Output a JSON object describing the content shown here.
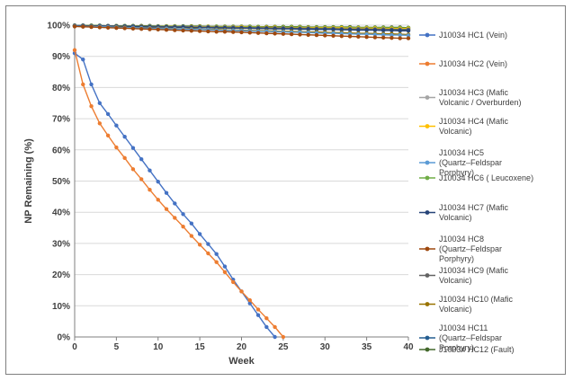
{
  "chart_data": {
    "type": "line",
    "xlabel": "Week",
    "ylabel": "NP Remaining (%)",
    "xlim": [
      0,
      40
    ],
    "ylim": [
      0,
      100
    ],
    "x_ticks": [
      0,
      5,
      10,
      15,
      20,
      25,
      30,
      35,
      40
    ],
    "y_ticks": [
      0,
      10,
      20,
      30,
      40,
      50,
      60,
      70,
      80,
      90,
      100
    ],
    "y_tick_suffix": "%",
    "grid": "horizontal",
    "legend": "right",
    "series": [
      {
        "name": "J10034 HC1 (Vein)",
        "color": "#4472c4",
        "x": [
          0,
          1,
          2,
          3,
          4,
          5,
          6,
          7,
          8,
          9,
          10,
          11,
          12,
          13,
          14,
          15,
          16,
          17,
          18,
          19,
          20,
          21,
          22,
          23,
          24
        ],
        "y": [
          91,
          89,
          81,
          75,
          71.5,
          67.8,
          64.2,
          60.6,
          57,
          53.4,
          49.8,
          46.2,
          42.8,
          39.4,
          36.4,
          33,
          29.8,
          26.6,
          22.6,
          18.4,
          14.6,
          10.8,
          7,
          3.2,
          0
        ]
      },
      {
        "name": "J10034 HC2 (Vein)",
        "color": "#ed7d31",
        "x": [
          0,
          1,
          2,
          3,
          4,
          5,
          6,
          7,
          8,
          9,
          10,
          11,
          12,
          13,
          14,
          15,
          16,
          17,
          18,
          19,
          20,
          21,
          22,
          23,
          24,
          25
        ],
        "y": [
          92,
          81,
          74,
          68.5,
          64.6,
          60.8,
          57.4,
          53.8,
          50.6,
          47.2,
          44,
          41,
          38.2,
          35.4,
          32.4,
          29.6,
          26.8,
          24,
          20.8,
          17.6,
          14.6,
          11.8,
          8.8,
          6,
          3.2,
          0
        ]
      },
      {
        "name": "J10034 HC3 (Mafic Volcanic / Overburden)",
        "color": "#a5a5a5",
        "x": [
          0,
          1,
          2,
          3,
          4,
          5,
          6,
          7,
          8,
          9,
          10,
          11,
          12,
          13,
          14,
          15,
          16,
          17,
          18,
          19,
          20,
          21,
          22,
          23,
          24,
          25,
          26,
          27,
          28,
          29,
          30,
          31,
          32,
          33,
          34,
          35,
          36,
          37,
          38,
          39,
          40
        ],
        "y": [
          99.8,
          99.8,
          99.7,
          99.7,
          99.7,
          99.6,
          99.6,
          99.6,
          99.5,
          99.5,
          99.5,
          99.4,
          99.4,
          99.4,
          99.3,
          99.3,
          99.3,
          99.2,
          99.2,
          99.2,
          99.1,
          99.1,
          99.1,
          99,
          99,
          99,
          98.9,
          98.9,
          98.9,
          98.8,
          98.8,
          98.8,
          98.7,
          98.7,
          98.7,
          98.6,
          98.6,
          98.6,
          98.5,
          98.5,
          98.5
        ]
      },
      {
        "name": "J10034 HC4 (Mafic Volcanic)",
        "color": "#ffc000",
        "x": [
          0,
          1,
          2,
          3,
          4,
          5,
          6,
          7,
          8,
          9,
          10,
          11,
          12,
          13,
          14,
          15,
          16,
          17,
          18,
          19,
          20,
          21,
          22,
          23,
          24,
          25,
          26,
          27,
          28,
          29,
          30,
          31,
          32,
          33,
          34,
          35,
          36,
          37,
          38,
          39,
          40
        ],
        "y": [
          99.9,
          99.9,
          99.8,
          99.8,
          99.8,
          99.7,
          99.7,
          99.7,
          99.7,
          99.6,
          99.6,
          99.6,
          99.6,
          99.5,
          99.5,
          99.5,
          99.5,
          99.4,
          99.4,
          99.4,
          99.4,
          99.3,
          99.3,
          99.3,
          99.3,
          99.2,
          99.2,
          99.2,
          99.2,
          99.1,
          99.1,
          99.1,
          99.1,
          99,
          99,
          99,
          99,
          98.9,
          98.9,
          98.9,
          98.9
        ]
      },
      {
        "name": "J10034 HC5 (Quartz–Feldspar Porphyry)",
        "color": "#5b9bd5",
        "x": [
          0,
          1,
          2,
          3,
          4,
          5,
          6,
          7,
          8,
          9,
          10,
          11,
          12,
          13,
          14,
          15,
          16,
          17,
          18,
          19,
          20,
          21,
          22,
          23,
          24,
          25,
          26,
          27,
          28,
          29,
          30,
          31,
          32,
          33,
          34,
          35,
          36,
          37,
          38,
          39,
          40
        ],
        "y": [
          99.7,
          99.6,
          99.5,
          99.5,
          99.4,
          99.3,
          99.2,
          99.2,
          99.1,
          99,
          98.9,
          98.9,
          98.8,
          98.7,
          98.6,
          98.6,
          98.5,
          98.4,
          98.3,
          98.3,
          98.2,
          98.1,
          98,
          98,
          97.9,
          97.8,
          97.7,
          97.7,
          97.6,
          97.5,
          97.4,
          97.4,
          97.3,
          97.2,
          97.1,
          97.1,
          97,
          96.9,
          96.8,
          96.8,
          96.7
        ]
      },
      {
        "name": "J10034 HC6 ( Leucoxene)",
        "color": "#70ad47",
        "x": [
          0,
          1,
          2,
          3,
          4,
          5,
          6,
          7,
          8,
          9,
          10,
          11,
          12,
          13,
          14,
          15,
          16,
          17,
          18,
          19,
          20,
          21,
          22,
          23,
          24,
          25,
          26,
          27,
          28,
          29,
          30,
          31,
          32,
          33,
          34,
          35,
          36,
          37,
          38,
          39,
          40
        ],
        "y": [
          99.9,
          99.9,
          99.9,
          99.8,
          99.8,
          99.8,
          99.8,
          99.8,
          99.7,
          99.7,
          99.7,
          99.7,
          99.7,
          99.6,
          99.6,
          99.6,
          99.6,
          99.6,
          99.5,
          99.5,
          99.5,
          99.5,
          99.5,
          99.4,
          99.4,
          99.4,
          99.4,
          99.4,
          99.3,
          99.3,
          99.3,
          99.3,
          99.3,
          99.2,
          99.2,
          99.2,
          99.2,
          99.2,
          99.1,
          99.1,
          99.1
        ]
      },
      {
        "name": "J10034 HC7 (Mafic Volcanic)",
        "color": "#264478",
        "x": [
          0,
          1,
          2,
          3,
          4,
          5,
          6,
          7,
          8,
          9,
          10,
          11,
          12,
          13,
          14,
          15,
          16,
          17,
          18,
          19,
          20,
          21,
          22,
          23,
          24,
          25,
          26,
          27,
          28,
          29,
          30,
          31,
          32,
          33,
          34,
          35,
          36,
          37,
          38,
          39,
          40
        ],
        "y": [
          99.8,
          99.8,
          99.7,
          99.7,
          99.6,
          99.6,
          99.6,
          99.5,
          99.5,
          99.4,
          99.4,
          99.4,
          99.3,
          99.3,
          99.2,
          99.2,
          99.2,
          99.1,
          99.1,
          99,
          99,
          99,
          98.9,
          98.9,
          98.8,
          98.8,
          98.8,
          98.7,
          98.7,
          98.6,
          98.6,
          98.6,
          98.5,
          98.5,
          98.4,
          98.4,
          98.4,
          98.3,
          98.3,
          98.2,
          98.2
        ]
      },
      {
        "name": "J10034 HC8 (Quartz–Feldspar Porphyry)",
        "color": "#9e480e",
        "x": [
          0,
          1,
          2,
          3,
          4,
          5,
          6,
          7,
          8,
          9,
          10,
          11,
          12,
          13,
          14,
          15,
          16,
          17,
          18,
          19,
          20,
          21,
          22,
          23,
          24,
          25,
          26,
          27,
          28,
          29,
          30,
          31,
          32,
          33,
          34,
          35,
          36,
          37,
          38,
          39,
          40
        ],
        "y": [
          99.6,
          99.5,
          99.4,
          99.3,
          99.2,
          99.1,
          99,
          98.9,
          98.8,
          98.7,
          98.6,
          98.5,
          98.4,
          98.3,
          98.2,
          98.1,
          98,
          97.9,
          97.9,
          97.8,
          97.7,
          97.6,
          97.5,
          97.4,
          97.3,
          97.2,
          97.1,
          97,
          96.9,
          96.8,
          96.7,
          96.6,
          96.5,
          96.4,
          96.3,
          96.2,
          96.1,
          96,
          95.9,
          95.8,
          95.8
        ]
      },
      {
        "name": "J10034 HC9 (Mafic Volcanic)",
        "color": "#636363",
        "x": [
          0,
          1,
          2,
          3,
          4,
          5,
          6,
          7,
          8,
          9,
          10,
          11,
          12,
          13,
          14,
          15,
          16,
          17,
          18,
          19,
          20,
          21,
          22,
          23,
          24,
          25,
          26,
          27,
          28,
          29,
          30,
          31,
          32,
          33,
          34,
          35,
          36,
          37,
          38,
          39,
          40
        ],
        "y": [
          99.8,
          99.8,
          99.8,
          99.7,
          99.7,
          99.7,
          99.6,
          99.6,
          99.6,
          99.5,
          99.5,
          99.5,
          99.4,
          99.4,
          99.4,
          99.3,
          99.3,
          99.3,
          99.2,
          99.2,
          99.2,
          99.1,
          99.1,
          99.1,
          99,
          99,
          99,
          98.9,
          98.9,
          98.9,
          98.8,
          98.8,
          98.8,
          98.7,
          98.7,
          98.7,
          98.6,
          98.6,
          98.6,
          98.5,
          98.5
        ]
      },
      {
        "name": "J10034 HC10 (Mafic Volcanic)",
        "color": "#997300",
        "x": [
          0,
          1,
          2,
          3,
          4,
          5,
          6,
          7,
          8,
          9,
          10,
          11,
          12,
          13,
          14,
          15,
          16,
          17,
          18,
          19,
          20,
          21,
          22,
          23,
          24,
          25,
          26,
          27,
          28,
          29,
          30,
          31,
          32,
          33,
          34,
          35,
          36,
          37,
          38,
          39,
          40
        ],
        "y": [
          99.7,
          99.6,
          99.6,
          99.5,
          99.4,
          99.4,
          99.3,
          99.2,
          99.2,
          99.1,
          99,
          99,
          98.9,
          98.8,
          98.8,
          98.7,
          98.6,
          98.6,
          98.5,
          98.4,
          98.4,
          98.3,
          98.2,
          98.2,
          98.1,
          98,
          98,
          97.9,
          97.8,
          97.8,
          97.7,
          97.6,
          97.6,
          97.5,
          97.4,
          97.4,
          97.3,
          97.2,
          97.2,
          97.1,
          97
        ]
      },
      {
        "name": "J10034 HC11 (Quartz–Feldspar Porphyry)",
        "color": "#255e91",
        "x": [
          0,
          1,
          2,
          3,
          4,
          5,
          6,
          7,
          8,
          9,
          10,
          11,
          12,
          13,
          14,
          15,
          16,
          17,
          18,
          19,
          20,
          21,
          22,
          23,
          24,
          25,
          26,
          27,
          28,
          29,
          30,
          31,
          32,
          33,
          34,
          35,
          36,
          37,
          38,
          39,
          40
        ],
        "y": [
          99.9,
          99.9,
          99.8,
          99.8,
          99.8,
          99.7,
          99.7,
          99.7,
          99.6,
          99.6,
          99.6,
          99.5,
          99.5,
          99.5,
          99.4,
          99.4,
          99.4,
          99.3,
          99.3,
          99.3,
          99.2,
          99.2,
          99.2,
          99.1,
          99.1,
          99.1,
          99,
          99,
          99,
          98.9,
          98.9,
          98.9,
          98.8,
          98.8,
          98.8,
          98.7,
          98.7,
          98.7,
          98.6,
          98.6,
          98.6
        ]
      },
      {
        "name": "J10034 HC12 (Fault)",
        "color": "#43682b",
        "x": [
          0,
          1,
          2,
          3,
          4,
          5,
          6,
          7,
          8,
          9,
          10,
          11,
          12,
          13,
          14,
          15,
          16,
          17,
          18,
          19,
          20,
          21,
          22,
          23,
          24,
          25,
          26,
          27,
          28,
          29,
          30,
          31,
          32,
          33,
          34,
          35,
          36,
          37,
          38,
          39,
          40
        ],
        "y": [
          99.9,
          99.9,
          99.9,
          99.9,
          99.8,
          99.8,
          99.8,
          99.8,
          99.8,
          99.8,
          99.7,
          99.7,
          99.7,
          99.7,
          99.7,
          99.7,
          99.6,
          99.6,
          99.6,
          99.6,
          99.6,
          99.6,
          99.5,
          99.5,
          99.5,
          99.5,
          99.5,
          99.5,
          99.4,
          99.4,
          99.4,
          99.4,
          99.4,
          99.4,
          99.3,
          99.3,
          99.3,
          99.3,
          99.3,
          99.3,
          99.2
        ]
      }
    ]
  }
}
